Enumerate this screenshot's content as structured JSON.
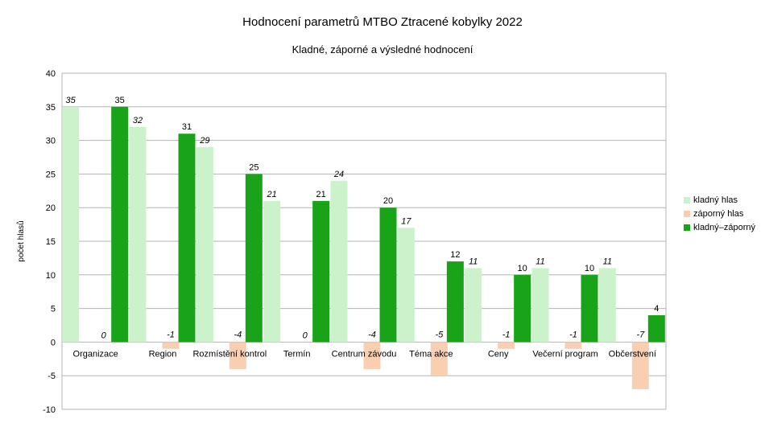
{
  "chart_data": {
    "type": "bar",
    "title": "Hodnocení parametrů MTBO Ztracené kobylky 2022",
    "subtitle": "Kladné, záporné a výsledné hodnocení",
    "xlabel": "",
    "ylabel": "počet hlasů",
    "ylim": [
      -10,
      40
    ],
    "yticks": [
      40,
      35,
      30,
      25,
      20,
      15,
      10,
      5,
      0,
      -5,
      -10
    ],
    "grid": true,
    "legend_position": "right",
    "categories": [
      "Organizace",
      "Region",
      "Rozmístění kontrol",
      "Termín",
      "Centrum závodu",
      "Téma akce",
      "Ceny",
      "Večerní program",
      "Občerstvení"
    ],
    "series": [
      {
        "name": "kladný hlas",
        "color": "#ccf2cc",
        "label_style": "italic",
        "values": [
          35,
          32,
          29,
          21,
          24,
          17,
          11,
          11,
          11
        ]
      },
      {
        "name": "záporný hlas",
        "color": "#f9cfb1",
        "label_style": "italic",
        "values": [
          0,
          -1,
          -4,
          0,
          -4,
          -5,
          -1,
          -1,
          -7
        ]
      },
      {
        "name": "kladný–záporný",
        "color": "#19a319",
        "label_style": "normal",
        "values": [
          35,
          31,
          25,
          21,
          20,
          12,
          10,
          10,
          4
        ]
      }
    ]
  }
}
